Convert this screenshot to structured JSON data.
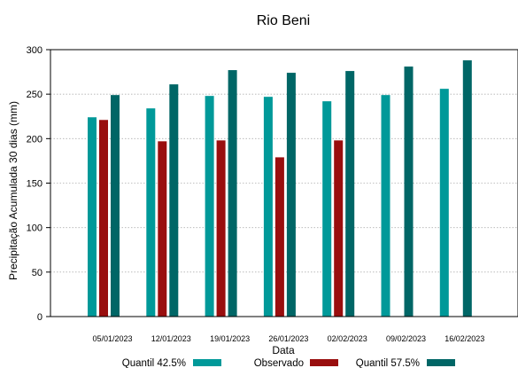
{
  "chart_data": {
    "type": "bar",
    "title": "Rio Beni",
    "xlabel": "Data",
    "ylabel": "Precipitação Acumulada 30 dias (mm)",
    "ylim": [
      0,
      300
    ],
    "yticks": [
      0,
      50,
      100,
      150,
      200,
      250,
      300
    ],
    "grid": true,
    "legend_position": "bottom",
    "categories": [
      "05/01/2023",
      "12/01/2023",
      "19/01/2023",
      "26/01/2023",
      "02/02/2023",
      "09/02/2023",
      "16/02/2023"
    ],
    "series": [
      {
        "name": "Quantil 42.5%",
        "color": "#009999",
        "values": [
          224,
          234,
          248,
          247,
          242,
          249,
          256
        ]
      },
      {
        "name": "Observado",
        "color": "#990e0e",
        "values": [
          221,
          197,
          198,
          179,
          198,
          null,
          null
        ]
      },
      {
        "name": "Quantil 57.5%",
        "color": "#006666",
        "values": [
          249,
          261,
          277,
          274,
          276,
          281,
          288
        ]
      }
    ]
  }
}
